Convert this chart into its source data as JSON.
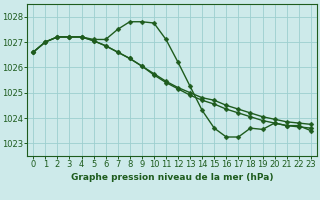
{
  "title": "Graphe pression niveau de la mer (hPa)",
  "background_color": "#cdeaea",
  "grid_color": "#9dcfcf",
  "line_color": "#1e5c1e",
  "spine_color": "#1e5c1e",
  "xlim": [
    -0.5,
    23.5
  ],
  "ylim": [
    1022.5,
    1028.5
  ],
  "yticks": [
    1023,
    1024,
    1025,
    1026,
    1027,
    1028
  ],
  "xticks": [
    0,
    1,
    2,
    3,
    4,
    5,
    6,
    7,
    8,
    9,
    10,
    11,
    12,
    13,
    14,
    15,
    16,
    17,
    18,
    19,
    20,
    21,
    22,
    23
  ],
  "series": [
    [
      1026.6,
      1027.0,
      1027.2,
      1027.2,
      1027.2,
      1027.1,
      1027.1,
      1027.5,
      1027.8,
      1027.8,
      1027.75,
      1027.1,
      1026.2,
      1025.25,
      1024.3,
      1023.6,
      1023.25,
      1023.25,
      1023.6,
      1023.55,
      1023.8,
      1023.7,
      1023.7,
      1023.5
    ],
    [
      1026.6,
      1027.0,
      1027.2,
      1027.2,
      1027.2,
      1027.05,
      1026.85,
      1026.6,
      1026.35,
      1026.05,
      1025.75,
      1025.45,
      1025.2,
      1025.0,
      1024.8,
      1024.7,
      1024.5,
      1024.35,
      1024.2,
      1024.05,
      1023.95,
      1023.85,
      1023.8,
      1023.75
    ],
    [
      1026.6,
      1027.0,
      1027.2,
      1027.2,
      1027.2,
      1027.05,
      1026.85,
      1026.6,
      1026.35,
      1026.05,
      1025.7,
      1025.4,
      1025.15,
      1024.9,
      1024.7,
      1024.55,
      1024.35,
      1024.2,
      1024.05,
      1023.9,
      1023.8,
      1023.7,
      1023.65,
      1023.6
    ]
  ],
  "marker": "D",
  "marker_size": 2.5,
  "linewidth": 1.0,
  "tick_fontsize": 6.0,
  "label_fontsize": 6.5
}
